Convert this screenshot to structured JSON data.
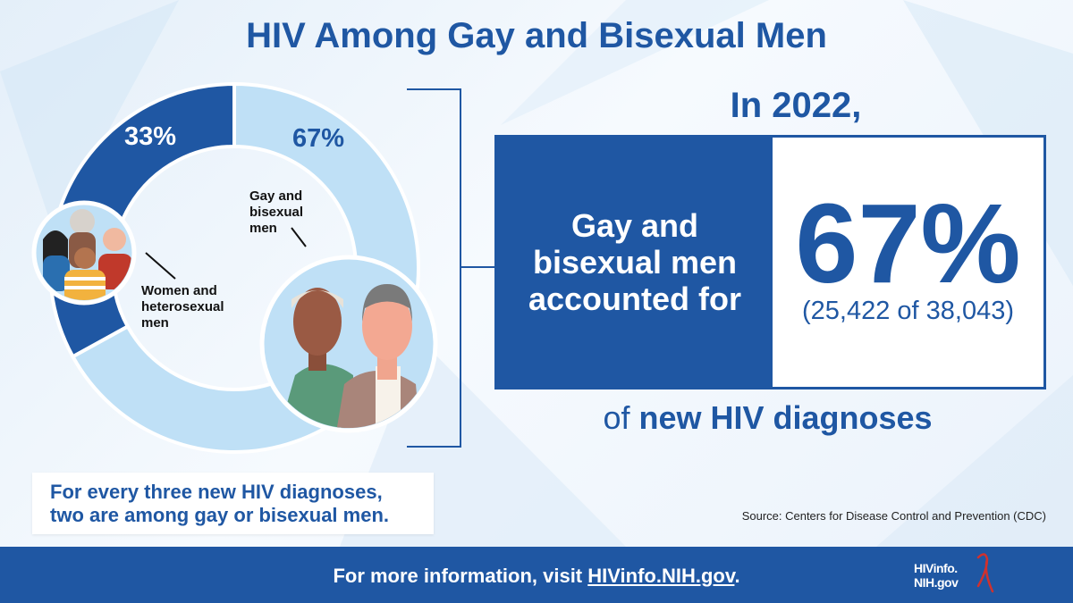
{
  "title": "HIV Among Gay and Bisexual Men",
  "chart_data": {
    "type": "pie",
    "title": "HIV Among Gay and Bisexual Men",
    "slices": [
      {
        "label": "Women and heterosexual men",
        "value": 33,
        "value_label": "33%",
        "color": "#1f57a3"
      },
      {
        "label": "Gay and bisexual men",
        "value": 67,
        "value_label": "67%",
        "color": "#bfe0f6"
      }
    ]
  },
  "labels": {
    "gay_line1": "Gay and",
    "gay_line2": "bisexual",
    "gay_line3": "men",
    "women_line1": "Women and",
    "women_line2": "heterosexual",
    "women_line3": "men"
  },
  "stat": {
    "year_text": "In 2022,",
    "left_line1": "Gay and",
    "left_line2": "bisexual men",
    "left_line3": "accounted for",
    "big_value": "67%",
    "detail": "(25,422 of 38,043)",
    "of_prefix": "of",
    "of_bold": "new HIV diagnoses"
  },
  "callout": {
    "line1": "For every three new HIV diagnoses,",
    "line2": "two are among gay or bisexual men."
  },
  "source": "Source: Centers for Disease Control and Prevention (CDC)",
  "footer": {
    "text_prefix": "For more information, visit ",
    "link": "HIVinfo.NIH.gov",
    "text_suffix": "."
  },
  "logo": {
    "line1": "HIVinfo.",
    "line2": "NIH.gov"
  },
  "colors": {
    "primary": "#1f57a3",
    "light": "#bfe0f6",
    "ribbon": "#d0312d"
  }
}
